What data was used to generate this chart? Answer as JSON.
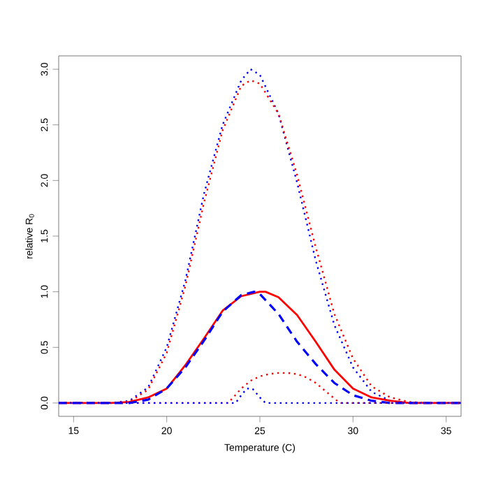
{
  "chart_data": {
    "type": "line",
    "xlabel": "Temperature (C)",
    "ylabel": "relative R$_{0}$",
    "xlim": [
      14.2,
      35.8
    ],
    "ylim": [
      -0.12,
      3.12
    ],
    "xticks": [
      15,
      20,
      25,
      30,
      35
    ],
    "yticks": [
      {
        "value": 0,
        "label": "0.0"
      },
      {
        "value": 0.5,
        "label": "0.5"
      },
      {
        "value": 1,
        "label": "1.0"
      },
      {
        "value": 1.5,
        "label": "1.5"
      },
      {
        "value": 2,
        "label": "2.0"
      },
      {
        "value": 2.5,
        "label": "2.5"
      },
      {
        "value": 3,
        "label": "3.0"
      }
    ],
    "grid": false,
    "series": [
      {
        "color": "#0000ff",
        "line_style": "dotted",
        "x": [
          14.2,
          17,
          17.5,
          18,
          19,
          20,
          21,
          22,
          23,
          24,
          24.5,
          25,
          26,
          27,
          28,
          29,
          30,
          31,
          32,
          33,
          35.8
        ],
        "values": [
          0,
          0,
          0.01,
          0.02,
          0.14,
          0.5,
          1.1,
          1.88,
          2.5,
          2.9,
          3.0,
          2.95,
          2.6,
          1.98,
          1.28,
          0.7,
          0.32,
          0.1,
          0.02,
          0,
          0
        ]
      },
      {
        "color": "#ff0000",
        "line_style": "dotted",
        "x": [
          14.2,
          17,
          17.5,
          18,
          19,
          20,
          21,
          22,
          23,
          24,
          24.5,
          25,
          26,
          27,
          28,
          29,
          30,
          31,
          32,
          33,
          34,
          35.8
        ],
        "values": [
          0,
          0,
          0,
          0.01,
          0.12,
          0.45,
          1.05,
          1.8,
          2.45,
          2.85,
          2.9,
          2.87,
          2.6,
          2.05,
          1.4,
          0.8,
          0.4,
          0.15,
          0.05,
          0.01,
          0,
          0
        ]
      },
      {
        "color": "#ff0000",
        "line_style": "solid",
        "x": [
          14.2,
          17,
          18,
          19,
          20,
          21,
          22,
          23,
          24,
          25,
          25.3,
          26,
          27,
          28,
          29,
          30,
          31,
          32,
          33,
          35.8
        ],
        "values": [
          0,
          0,
          0.01,
          0.05,
          0.13,
          0.34,
          0.58,
          0.83,
          0.96,
          1.0,
          1.0,
          0.95,
          0.79,
          0.55,
          0.3,
          0.13,
          0.05,
          0.02,
          0,
          0
        ]
      },
      {
        "color": "#0000ff",
        "line_style": "dashed",
        "x": [
          14.2,
          18,
          19,
          20,
          21,
          22,
          23,
          24,
          24.7,
          25,
          26,
          27,
          28,
          29,
          30,
          31,
          32,
          35.8
        ],
        "values": [
          0,
          0,
          0.03,
          0.13,
          0.32,
          0.56,
          0.82,
          0.97,
          1.0,
          0.98,
          0.8,
          0.55,
          0.35,
          0.18,
          0.07,
          0.02,
          0,
          0
        ]
      },
      {
        "color": "#ff0000",
        "line_style": "dotted",
        "x": [
          14.2,
          23.3,
          24,
          24.5,
          25,
          25.5,
          26,
          26.5,
          27,
          27.5,
          28,
          28.5,
          29,
          29.3,
          35.8
        ],
        "values": [
          0,
          0,
          0.13,
          0.2,
          0.24,
          0.26,
          0.27,
          0.27,
          0.26,
          0.23,
          0.18,
          0.11,
          0.04,
          0,
          0
        ]
      },
      {
        "color": "#0000ff",
        "line_style": "dotted",
        "x": [
          14.2,
          23.7,
          24,
          24.3,
          24.6,
          25,
          25.3,
          35.8
        ],
        "values": [
          0,
          0,
          0.07,
          0.13,
          0.13,
          0.05,
          0,
          0
        ]
      }
    ]
  }
}
